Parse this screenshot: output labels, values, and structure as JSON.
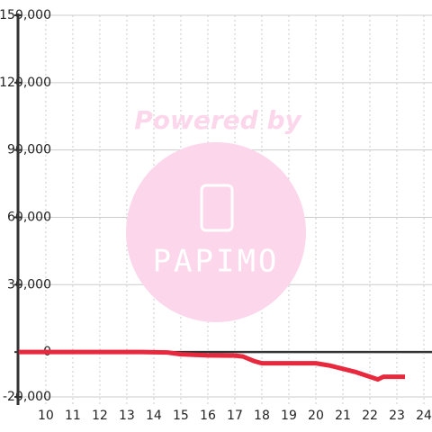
{
  "chart_data": {
    "type": "line",
    "watermark": {
      "title": "Powered by",
      "brand": "PAPIMO"
    },
    "x": [
      9,
      13.5,
      14.5,
      15,
      16,
      17,
      17.3,
      17.7,
      18,
      20,
      20.5,
      21,
      21.5,
      22,
      22.3,
      22.5,
      23.3
    ],
    "series": [
      {
        "color": "#e8283c",
        "values": [
          0,
          0,
          -200,
          -1000,
          -1500,
          -1600,
          -2000,
          -4000,
          -5000,
          -5000,
          -6000,
          -7500,
          -9000,
          -11000,
          -12200,
          -11000,
          -11000
        ]
      }
    ],
    "xlim": [
      8.97,
      24.3
    ],
    "xticks": [
      10,
      11,
      12,
      13,
      14,
      15,
      16,
      17,
      18,
      19,
      20,
      21,
      22,
      23,
      24
    ],
    "ylim": [
      -23600,
      150000
    ],
    "yticks": [
      {
        "value": -20000,
        "label": "-20,000"
      },
      0,
      {
        "value": 30000,
        "label": "30,000"
      },
      {
        "value": 60000,
        "label": "60,000"
      },
      {
        "value": 90000,
        "label": "90,000"
      },
      {
        "value": 120000,
        "label": "120,000"
      },
      {
        "value": 150000,
        "label": "150,000"
      }
    ],
    "grid": true
  }
}
